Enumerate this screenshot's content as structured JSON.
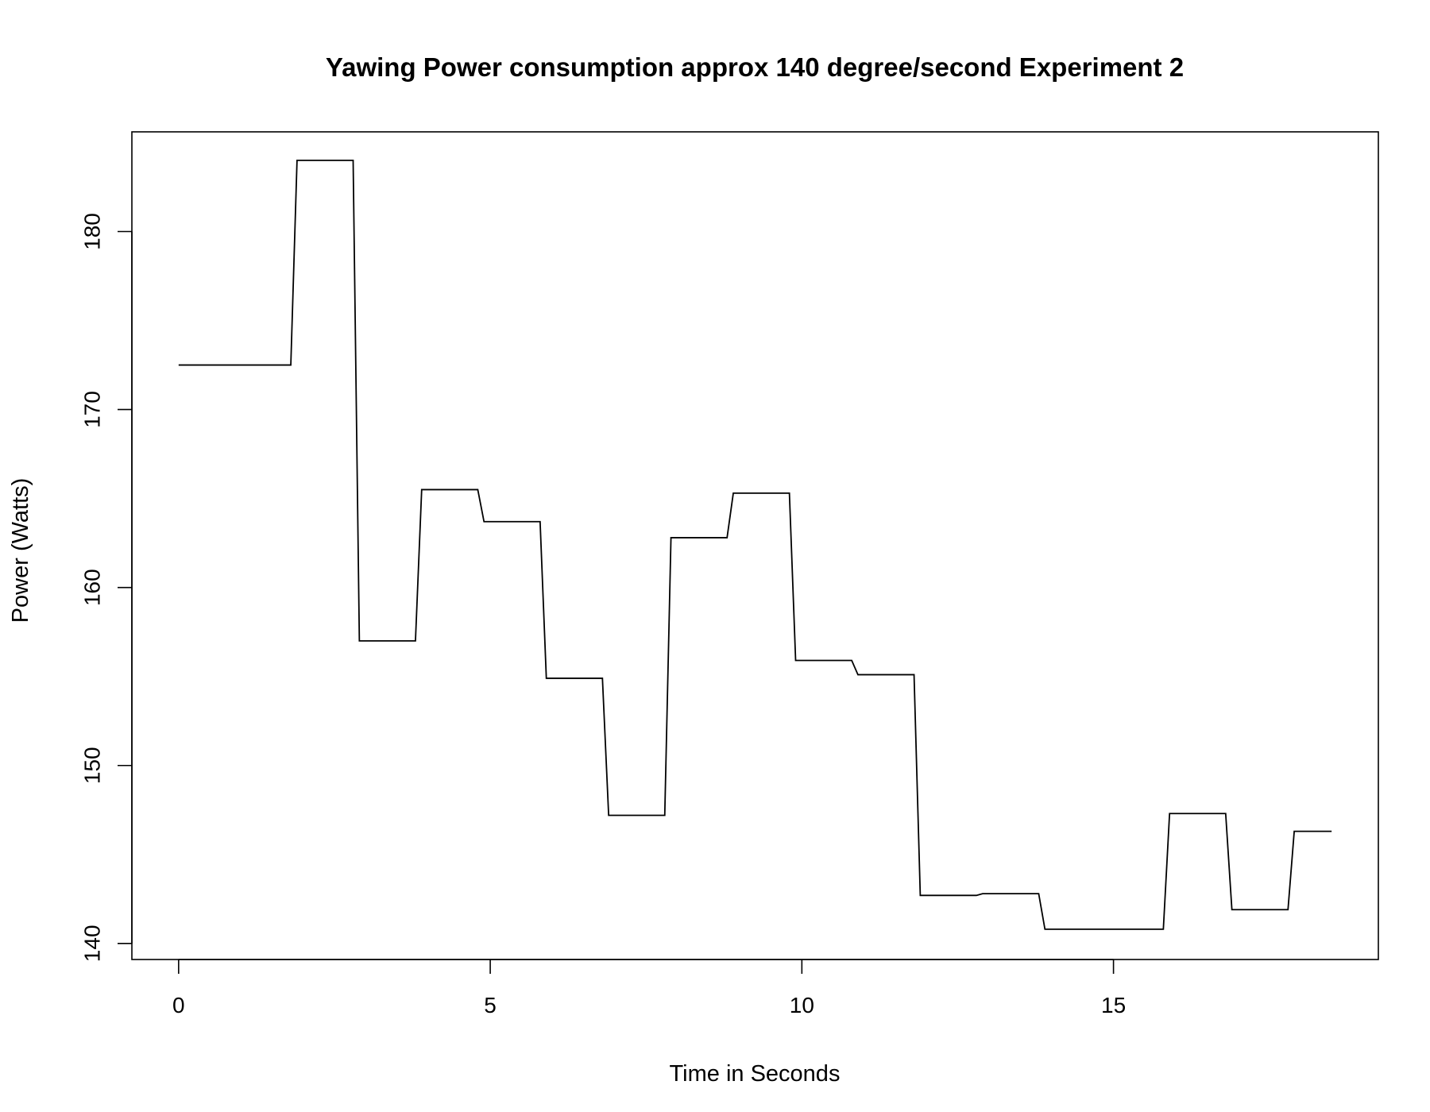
{
  "chart_data": {
    "type": "line",
    "title": "Yawing Power consumption approx 140 degree/second Experiment 2",
    "xlabel": "Time in Seconds",
    "ylabel": "Power (Watts)",
    "xlim": [
      -0.75,
      19.25
    ],
    "ylim": [
      139.1,
      185.6
    ],
    "xticks": [
      0,
      5,
      10,
      15
    ],
    "yticks": [
      140,
      150,
      160,
      170,
      180
    ],
    "grid": false,
    "legend": "none",
    "line_color": "#000000",
    "series": [
      {
        "x": [
          0,
          1.8,
          1.9,
          2.8,
          2.9,
          3.8,
          3.9,
          4.8,
          4.9,
          5.8,
          5.9,
          6.8,
          6.9,
          7.8,
          7.9,
          8.8,
          8.9,
          9.8,
          9.9,
          10.8,
          10.9,
          11.8,
          11.9,
          12.8,
          12.9,
          13.8,
          13.9,
          15.8,
          15.9,
          16.8,
          16.9,
          17.8,
          17.9,
          18.5
        ],
        "y": [
          172.5,
          172.5,
          184.0,
          184.0,
          157.0,
          157.0,
          165.5,
          165.5,
          163.7,
          163.7,
          154.9,
          154.9,
          147.2,
          147.2,
          162.8,
          162.8,
          165.3,
          165.3,
          155.9,
          155.9,
          155.1,
          155.1,
          142.7,
          142.7,
          142.8,
          142.8,
          140.8,
          140.8,
          147.3,
          147.3,
          141.9,
          141.9,
          146.3,
          146.3
        ]
      }
    ]
  }
}
